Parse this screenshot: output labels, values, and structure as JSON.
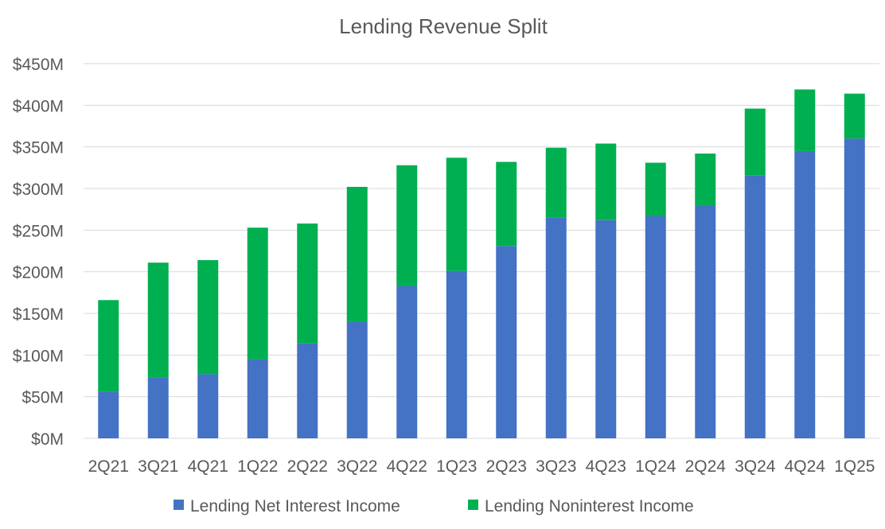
{
  "chart_data": {
    "type": "bar",
    "stacked": true,
    "title": "Lending Revenue Split",
    "xlabel": "",
    "ylabel": "",
    "ylim": [
      0,
      450
    ],
    "ytick_values": [
      0,
      50,
      100,
      150,
      200,
      250,
      300,
      350,
      400,
      450
    ],
    "ytick_labels": [
      "$0M",
      "$50M",
      "$100M",
      "$150M",
      "$200M",
      "$250M",
      "$300M",
      "$350M",
      "$400M",
      "$450M"
    ],
    "grid": true,
    "legend_position": "bottom",
    "categories": [
      "2Q21",
      "3Q21",
      "4Q21",
      "1Q22",
      "2Q22",
      "3Q22",
      "4Q22",
      "1Q23",
      "2Q23",
      "3Q23",
      "4Q23",
      "1Q24",
      "2Q24",
      "3Q24",
      "4Q24",
      "1Q25"
    ],
    "series": [
      {
        "name": "Lending Net Interest Income",
        "color": "#4472c4",
        "values": [
          56,
          73,
          77,
          95,
          114,
          140,
          183,
          201,
          231,
          265,
          262,
          267,
          279,
          316,
          345,
          360
        ]
      },
      {
        "name": "Lending Noninterest Income",
        "color": "#00b050",
        "values": [
          110,
          138,
          137,
          158,
          144,
          162,
          145,
          136,
          101,
          84,
          92,
          64,
          63,
          80,
          74,
          54
        ]
      }
    ]
  }
}
